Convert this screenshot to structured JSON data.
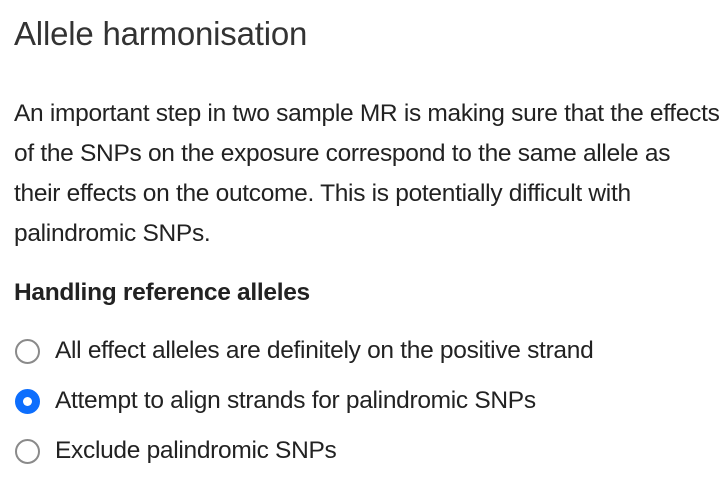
{
  "section": {
    "title": "Allele harmonisation",
    "description": "An important step in two sample MR is making sure that the effects of the SNPs on the exposure correspond to the same allele as their effects on the outcome. This is potentially difficult with palindromic SNPs."
  },
  "reference_alleles": {
    "label": "Handling reference alleles",
    "selected_index": 1,
    "options": [
      {
        "label": "All effect alleles are definitely on the positive strand",
        "checked": false
      },
      {
        "label": "Attempt to align strands for palindromic SNPs",
        "checked": true
      },
      {
        "label": "Exclude palindromic SNPs",
        "checked": false
      }
    ]
  },
  "colors": {
    "accent": "#0d6efd",
    "text": "#222222",
    "radio_border": "#8a8a8a"
  }
}
